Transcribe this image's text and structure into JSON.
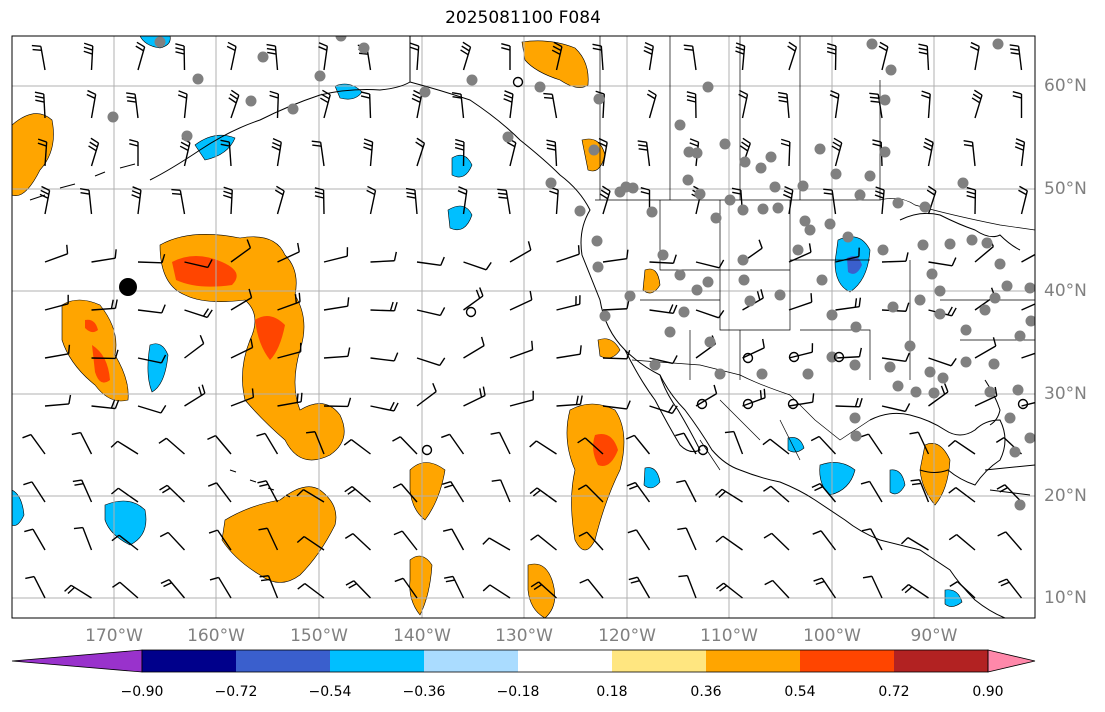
{
  "title": "2025081100 F084",
  "lon_labels": [
    "170°W",
    "160°W",
    "150°W",
    "140°W",
    "130°W",
    "120°W",
    "110°W",
    "100°W",
    "90°W"
  ],
  "lat_labels": [
    "60°N",
    "50°N",
    "40°N",
    "30°N",
    "20°N",
    "10°N"
  ],
  "colorbar": {
    "ticks": [
      "−0.90",
      "−0.72",
      "−0.54",
      "−0.36",
      "−0.18",
      "0.18",
      "0.36",
      "0.54",
      "0.72",
      "0.90"
    ],
    "colors": [
      "#9932cc",
      "#00008b",
      "#3a5fcd",
      "#00bfff",
      "#aadcff",
      "#ffffff",
      "#ffe680",
      "#ffa500",
      "#ff4500",
      "#b22222",
      "#ff88aa"
    ]
  },
  "colors": {
    "land": "#ffffff",
    "grid": "#b0b0b0",
    "coast": "#000000",
    "positive_light": "#ffa500",
    "positive_strong": "#ff4500",
    "negative_light": "#00bfff",
    "negative_strong": "#3a5fcd",
    "station_dot": "#808080"
  }
}
